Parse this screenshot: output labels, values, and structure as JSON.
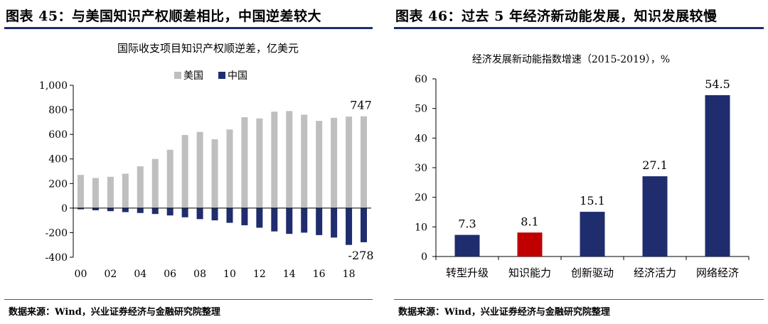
{
  "panels": {
    "left": {
      "fig_title": "图表 45：与美国知识产权顺差相比，中国逆差较大",
      "source": "数据来源：Wind，兴业证券经济与金融研究院整理"
    },
    "right": {
      "fig_title": "图表 46：过去 5 年经济新动能发展，知识发展较慢",
      "source": "数据来源：Wind，兴业证券经济与金融研究院整理"
    }
  },
  "chart_data": [
    {
      "type": "bar",
      "title": "国际收支项目知识产权顺逆差，亿美元",
      "x": [
        2000,
        2001,
        2002,
        2003,
        2004,
        2005,
        2006,
        2007,
        2008,
        2009,
        2010,
        2011,
        2012,
        2013,
        2014,
        2015,
        2016,
        2017,
        2018,
        2019
      ],
      "x_tick_labels": [
        "00",
        "02",
        "04",
        "06",
        "08",
        "10",
        "12",
        "14",
        "16",
        "18"
      ],
      "y_tick_labels": [
        "1,000",
        "800",
        "600",
        "400",
        "200",
        "0",
        "-200",
        "-400"
      ],
      "ylim": [
        -400,
        1000
      ],
      "legend": "top",
      "series": [
        {
          "name": "美国",
          "color": "#bfbfbf",
          "values": [
            270,
            245,
            255,
            280,
            340,
            400,
            475,
            595,
            620,
            560,
            640,
            740,
            730,
            785,
            790,
            760,
            710,
            735,
            745,
            747
          ]
        },
        {
          "name": "中国",
          "color": "#1f2d6e",
          "values": [
            -10,
            -18,
            -25,
            -33,
            -40,
            -48,
            -60,
            -75,
            -90,
            -100,
            -120,
            -140,
            -160,
            -190,
            -210,
            -200,
            -220,
            -240,
            -300,
            -278
          ]
        }
      ],
      "data_labels": [
        "747",
        "-278"
      ]
    },
    {
      "type": "bar",
      "title": "经济发展新动能指数增速（2015-2019），%",
      "categories": [
        "转型升级",
        "知识能力",
        "创新驱动",
        "经济活力",
        "网络经济"
      ],
      "values": [
        7.3,
        8.1,
        15.1,
        27.1,
        54.5
      ],
      "data_labels": [
        "7.3",
        "8.1",
        "15.1",
        "27.1",
        "54.5"
      ],
      "colors": [
        "#1f2d6e",
        "#c00000",
        "#1f2d6e",
        "#1f2d6e",
        "#1f2d6e"
      ],
      "y_tick_labels": [
        "60",
        "50",
        "40",
        "30",
        "20",
        "10",
        "0"
      ],
      "ylim": [
        0,
        60
      ]
    }
  ]
}
